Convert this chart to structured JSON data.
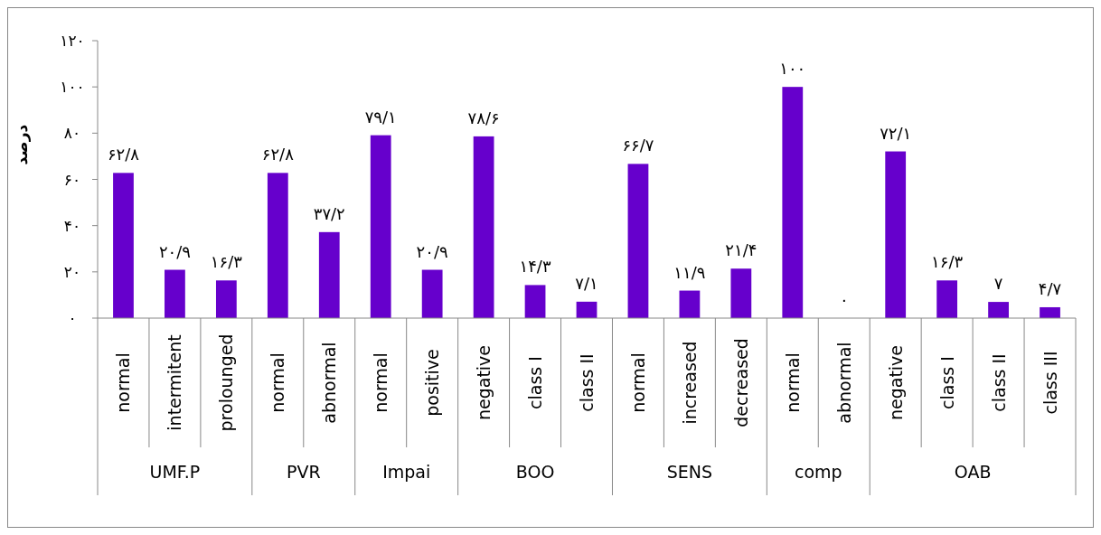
{
  "chart_data": {
    "type": "bar",
    "ylabel": "درصد",
    "categories": [
      "normal",
      "intermitent",
      "prolounged",
      "normal",
      "abnormal",
      "normal",
      "positive",
      "negative",
      "class I",
      "class II",
      "normal",
      "increased",
      "decreased",
      "normal",
      "abnormal",
      "negative",
      "class I",
      "class II",
      "class III"
    ],
    "values": [
      62.8,
      20.9,
      16.3,
      62.8,
      37.2,
      79.1,
      20.9,
      78.6,
      14.3,
      7.1,
      66.7,
      11.9,
      21.4,
      100,
      0,
      72.1,
      16.3,
      7,
      4.7
    ],
    "value_labels": [
      "۶۲/۸",
      "۲۰/۹",
      "۱۶/۳",
      "۶۲/۸",
      "۳۷/۲",
      "۷۹/۱",
      "۲۰/۹",
      "۷۸/۶",
      "۱۴/۳",
      "۷/۱",
      "۶۶/۷",
      "۱۱/۹",
      "۲۱/۴",
      "۱۰۰",
      "۰",
      "۷۲/۱",
      "۱۶/۳",
      "۷",
      "۴/۷"
    ],
    "color": "#6600cc",
    "ylim": [
      0,
      120
    ],
    "yticks": [
      {
        "value": 0,
        "label": "۰"
      },
      {
        "value": 20,
        "label": "۲۰"
      },
      {
        "value": 40,
        "label": "۴۰"
      },
      {
        "value": 60,
        "label": "۶۰"
      },
      {
        "value": 80,
        "label": "۸۰"
      },
      {
        "value": 100,
        "label": "۱۰۰"
      },
      {
        "value": 120,
        "label": "۱۲۰"
      }
    ],
    "annotations": [
      "UMF.P",
      "PVR",
      "Impai",
      "BOO",
      "SENS",
      "comp",
      "OAB"
    ]
  }
}
